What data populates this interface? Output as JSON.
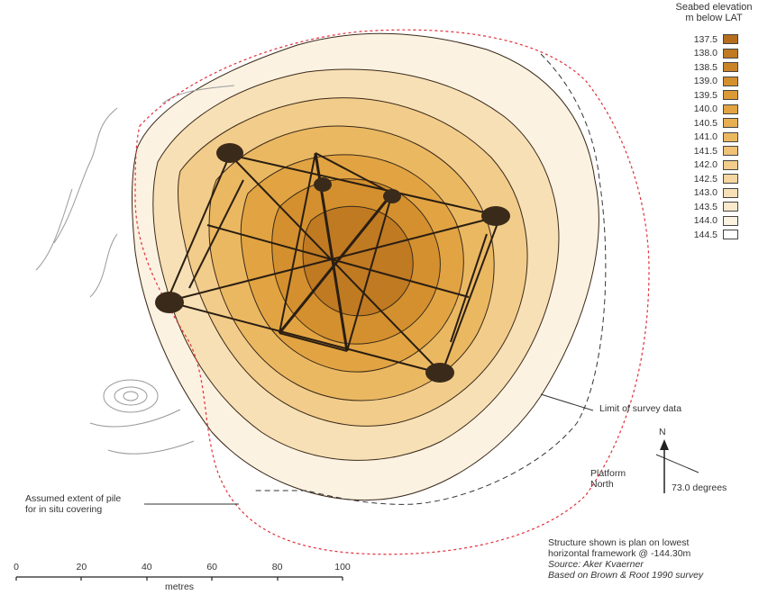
{
  "legend": {
    "title_line1": "Seabed elevation",
    "title_line2": "m below LAT",
    "levels": [
      {
        "label": "137.5",
        "color": "#b46e1e"
      },
      {
        "label": "138.0",
        "color": "#c07a22"
      },
      {
        "label": "138.5",
        "color": "#ca8428"
      },
      {
        "label": "139.0",
        "color": "#d4902e"
      },
      {
        "label": "139.5",
        "color": "#dc9a36"
      },
      {
        "label": "140.0",
        "color": "#e2a442"
      },
      {
        "label": "140.5",
        "color": "#e7ae52"
      },
      {
        "label": "141.0",
        "color": "#ebb862"
      },
      {
        "label": "141.5",
        "color": "#efc276"
      },
      {
        "label": "142.0",
        "color": "#f2cc8a"
      },
      {
        "label": "142.5",
        "color": "#f5d6a0"
      },
      {
        "label": "143.0",
        "color": "#f8e0b6"
      },
      {
        "label": "143.5",
        "color": "#fae9cc"
      },
      {
        "label": "144.0",
        "color": "#fcf2e2"
      },
      {
        "label": "144.5",
        "color": "#ffffff"
      }
    ]
  },
  "annotations": {
    "survey_limit": "Limit of survey data",
    "pile_line1": "Assumed extent of pile",
    "pile_line2": "for in situ covering",
    "platform_line1": "Platform",
    "platform_line2": "North",
    "north_letter": "N",
    "rotation": "73.0 degrees"
  },
  "scale_bar": {
    "ticks": [
      "0",
      "20",
      "40",
      "60",
      "80",
      "100"
    ],
    "unit": "metres"
  },
  "notes": {
    "line1": "Structure shown is plan on lowest",
    "line2": "horizontal framework @ -144.30m",
    "line3": "Source: Aker Kvaerner",
    "line4": "Based on Brown & Root 1990 survey"
  },
  "colors": {
    "contour": "#3a2a1a",
    "pile_boundary": "#e0303a",
    "survey_limit": "#333333",
    "outer_contours": "#999999"
  }
}
